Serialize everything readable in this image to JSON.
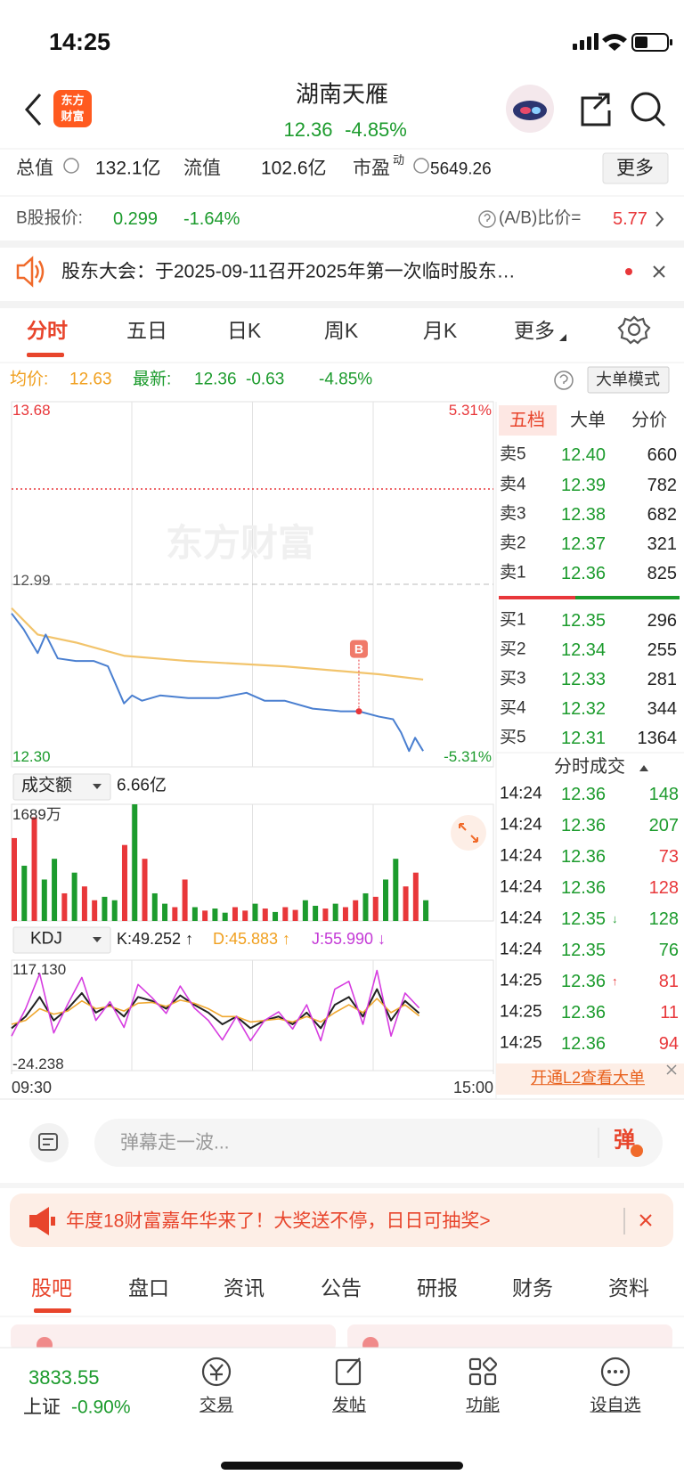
{
  "status_bar": {
    "time": "14:25"
  },
  "header": {
    "logo": [
      "东方",
      "财富"
    ],
    "title": "湖南天雁",
    "price": "12.36",
    "change": "-4.85%"
  },
  "stats": {
    "total_label": "总值",
    "total": "132.1亿",
    "float_label": "流值",
    "float": "102.6亿",
    "pe_label": "市盈",
    "pe_sup": "动",
    "pe": "5649.26",
    "more": "更多"
  },
  "b_share": {
    "label": "B股报价:",
    "price": "0.299",
    "change": "-1.64%",
    "ratio_label": "(A/B)比价=",
    "ratio": "5.77"
  },
  "notice": {
    "text": "股东大会：于2025-09-11召开2025年第一次临时股东…"
  },
  "chart_tabs": [
    "分时",
    "五日",
    "日K",
    "周K",
    "月K",
    "更多"
  ],
  "summary": {
    "avg_label": "均价:",
    "avg": "12.63",
    "latest_label": "最新:",
    "latest": "12.36",
    "change": "-0.63",
    "pct": "-4.85%",
    "mode": "大单模式"
  },
  "intraday": {
    "type": "line",
    "watermark": "东方财富",
    "xlim": [
      0,
      240
    ],
    "xticks": [
      {
        "value": 0,
        "label": "09:30"
      },
      {
        "value": 240,
        "label": "15:00"
      }
    ],
    "ylim": [
      12.3,
      13.68
    ],
    "yticks": [
      13.68,
      12.99,
      {
        "value": 12.3,
        "label": "12.30"
      }
    ],
    "y2lim": [
      -5.31,
      5.31
    ],
    "y2ticks": [
      {
        "value": 5.31,
        "label": "5.31%"
      },
      {
        "value": -5.31,
        "label": "-5.31%"
      }
    ],
    "alert_line": 13.35,
    "x": [
      0,
      6,
      13,
      17,
      23,
      32,
      41,
      48,
      56,
      60,
      65,
      74,
      88,
      103,
      117,
      126,
      136,
      150,
      164,
      173,
      183,
      190,
      194,
      198,
      201,
      205
    ],
    "price": [
      12.88,
      12.82,
      12.73,
      12.8,
      12.71,
      12.7,
      12.7,
      12.68,
      12.54,
      12.57,
      12.55,
      12.57,
      12.56,
      12.56,
      12.58,
      12.55,
      12.55,
      12.52,
      12.51,
      12.51,
      12.49,
      12.48,
      12.43,
      12.36,
      12.41,
      12.36
    ],
    "price_color": "#4a7fd0",
    "avg_x": [
      0,
      13,
      32,
      56,
      88,
      136,
      183,
      205
    ],
    "avg": [
      12.9,
      12.8,
      12.77,
      12.72,
      12.7,
      12.68,
      12.65,
      12.63
    ],
    "avg_color": "#f2c46c",
    "marker": {
      "label": "B",
      "x": 173,
      "value": 12.51
    }
  },
  "volume": {
    "type": "bar",
    "label": "成交额",
    "total": "6.66亿",
    "ylim": [
      0,
      1689
    ],
    "yticks": [
      {
        "value": 1689,
        "label": "1689万"
      }
    ],
    "x": [
      0,
      5,
      10,
      15,
      20,
      25,
      30,
      35,
      40,
      45,
      50,
      55,
      60,
      65,
      70,
      75,
      80,
      85,
      90,
      95,
      100,
      105,
      110,
      115,
      120,
      125,
      130,
      135,
      140,
      145,
      150,
      155,
      160,
      165,
      170,
      175,
      180,
      185,
      190,
      195,
      200,
      205
    ],
    "values": [
      1200,
      800,
      1500,
      600,
      900,
      400,
      700,
      500,
      300,
      350,
      300,
      1100,
      1689,
      900,
      400,
      250,
      200,
      600,
      200,
      150,
      180,
      120,
      200,
      150,
      250,
      180,
      130,
      200,
      160,
      300,
      220,
      180,
      250,
      200,
      300,
      400,
      350,
      600,
      900,
      500,
      700,
      300
    ],
    "up": [
      true,
      false,
      true,
      false,
      false,
      true,
      false,
      true,
      true,
      false,
      false,
      true,
      false,
      true,
      false,
      false,
      true,
      true,
      false,
      true,
      false,
      false,
      true,
      true,
      false,
      true,
      false,
      true,
      true,
      false,
      false,
      true,
      false,
      true,
      true,
      false,
      true,
      false,
      false,
      true,
      true,
      false
    ],
    "up_color": "#e8373a",
    "down_color": "#1c9b2d"
  },
  "kdj": {
    "type": "line",
    "label": "KDJ",
    "k_text": "K:49.252 ↑",
    "d_text": "D:45.883 ↑",
    "j_text": "J:55.990 ↓",
    "ylim": [
      -24.238,
      117.13
    ],
    "yticks": [
      {
        "value": 117.13,
        "label": "117.130"
      },
      {
        "value": -24.238,
        "label": "-24.238"
      }
    ],
    "x": [
      0,
      7,
      14,
      21,
      28,
      35,
      42,
      49,
      56,
      63,
      70,
      77,
      84,
      91,
      98,
      105,
      112,
      119,
      126,
      133,
      140,
      147,
      154,
      161,
      168,
      175,
      182,
      189,
      196,
      203
    ],
    "series": [
      {
        "name": "K",
        "color": "#222222",
        "values": [
          30,
          45,
          70,
          40,
          55,
          75,
          50,
          60,
          45,
          70,
          65,
          55,
          72,
          60,
          50,
          35,
          45,
          30,
          40,
          45,
          35,
          50,
          30,
          60,
          70,
          45,
          80,
          40,
          65,
          49.252
        ]
      },
      {
        "name": "D",
        "color": "#f0a830",
        "values": [
          35,
          40,
          55,
          48,
          52,
          65,
          55,
          58,
          52,
          62,
          63,
          58,
          66,
          62,
          55,
          45,
          45,
          38,
          40,
          42,
          38,
          45,
          38,
          50,
          60,
          50,
          68,
          50,
          60,
          45.883
        ]
      },
      {
        "name": "J",
        "color": "#d63ce0",
        "values": [
          20,
          55,
          100,
          24,
          61,
          95,
          40,
          64,
          31,
          86,
          69,
          49,
          84,
          56,
          40,
          15,
          45,
          14,
          40,
          51,
          29,
          60,
          14,
          80,
          90,
          35,
          104,
          20,
          75,
          55.99
        ]
      }
    ]
  },
  "order_book": {
    "tabs": [
      "五档",
      "大单",
      "分价"
    ],
    "asks": [
      {
        "label": "卖5",
        "price": "12.40",
        "volume": "660"
      },
      {
        "label": "卖4",
        "price": "12.39",
        "volume": "782"
      },
      {
        "label": "卖3",
        "price": "12.38",
        "volume": "682"
      },
      {
        "label": "卖2",
        "price": "12.37",
        "volume": "321"
      },
      {
        "label": "卖1",
        "price": "12.36",
        "volume": "825"
      }
    ],
    "bids": [
      {
        "label": "买1",
        "price": "12.35",
        "volume": "296"
      },
      {
        "label": "买2",
        "price": "12.34",
        "volume": "255"
      },
      {
        "label": "买3",
        "price": "12.33",
        "volume": "281"
      },
      {
        "label": "买4",
        "price": "12.32",
        "volume": "344"
      },
      {
        "label": "买5",
        "price": "12.31",
        "volume": "1364"
      }
    ]
  },
  "trades": {
    "title": "分时成交",
    "rows": [
      {
        "time": "14:24",
        "price": "12.36",
        "volume": "148",
        "color": "green"
      },
      {
        "time": "14:24",
        "price": "12.36",
        "volume": "207",
        "color": "green"
      },
      {
        "time": "14:24",
        "price": "12.36",
        "volume": "73",
        "color": "red"
      },
      {
        "time": "14:24",
        "price": "12.36",
        "volume": "128",
        "color": "red"
      },
      {
        "time": "14:24",
        "price": "12.35",
        "arrow": "↓",
        "volume": "128",
        "color": "green"
      },
      {
        "time": "14:24",
        "price": "12.35",
        "volume": "76",
        "color": "green"
      },
      {
        "time": "14:25",
        "price": "12.36",
        "arrow": "↑",
        "volume": "81",
        "color": "red"
      },
      {
        "time": "14:25",
        "price": "12.36",
        "volume": "11",
        "color": "red"
      },
      {
        "time": "14:25",
        "price": "12.36",
        "volume": "94",
        "color": "red"
      }
    ],
    "promo": "开通L2查看大单"
  },
  "comment": {
    "placeholder": "弹幕走一波...",
    "button": "弹"
  },
  "banner": {
    "text": "年度18财富嘉年华来了！大奖送不停，日日可抽奖>"
  },
  "content_tabs": [
    "股吧",
    "盘口",
    "资讯",
    "公告",
    "研报",
    "财务",
    "资料"
  ],
  "bottom_nav": {
    "index_value": "3833.55",
    "index_name": "上证",
    "index_change": "-0.90%",
    "items": [
      "交易",
      "发帖",
      "功能",
      "设自选"
    ]
  }
}
